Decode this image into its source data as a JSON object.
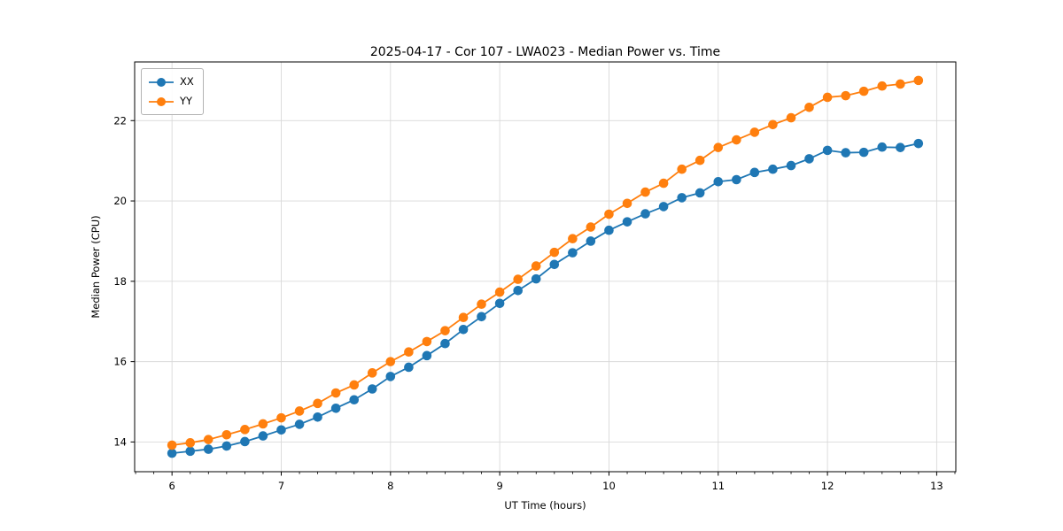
{
  "figure": {
    "background": "#ffffff"
  },
  "chart_data": {
    "type": "line",
    "title": "2025-04-17 - Cor 107 - LWA023 - Median Power vs. Time",
    "xlabel": "UT Time (hours)",
    "ylabel": "Median Power (CPU)",
    "xlim": [
      5.658,
      13.175
    ],
    "ylim": [
      13.26,
      23.46
    ],
    "xticks": [
      6,
      7,
      8,
      9,
      10,
      11,
      12,
      13
    ],
    "yticks": [
      14,
      16,
      18,
      20,
      22
    ],
    "x_minor_step": 0.16667,
    "grid": true,
    "grid_color": "#d9d9d9",
    "legend_position": "upper-left",
    "x": [
      6.0,
      6.167,
      6.333,
      6.5,
      6.667,
      6.833,
      7.0,
      7.167,
      7.333,
      7.5,
      7.667,
      7.833,
      8.0,
      8.167,
      8.333,
      8.5,
      8.667,
      8.833,
      9.0,
      9.167,
      9.333,
      9.5,
      9.667,
      9.833,
      10.0,
      10.167,
      10.333,
      10.5,
      10.667,
      10.833,
      11.0,
      11.167,
      11.333,
      11.5,
      11.667,
      11.833,
      12.0,
      12.167,
      12.333,
      12.5,
      12.667,
      12.833
    ],
    "series": [
      {
        "name": "XX",
        "color": "#1f77b4",
        "values": [
          13.72,
          13.77,
          13.82,
          13.9,
          14.01,
          14.15,
          14.3,
          14.44,
          14.62,
          14.84,
          15.05,
          15.32,
          15.63,
          15.86,
          16.15,
          16.45,
          16.8,
          17.12,
          17.45,
          17.77,
          18.06,
          18.42,
          18.71,
          19.0,
          19.27,
          19.48,
          19.68,
          19.86,
          20.08,
          20.2,
          20.48,
          20.53,
          20.71,
          20.79,
          20.88,
          21.05,
          21.26,
          21.2,
          21.21,
          21.34,
          21.33,
          21.43
        ]
      },
      {
        "name": "YY",
        "color": "#ff7f0e",
        "values": [
          13.92,
          13.98,
          14.06,
          14.18,
          14.31,
          14.45,
          14.6,
          14.77,
          14.96,
          15.22,
          15.42,
          15.72,
          16.0,
          16.24,
          16.5,
          16.77,
          17.1,
          17.43,
          17.73,
          18.05,
          18.38,
          18.72,
          19.06,
          19.35,
          19.67,
          19.94,
          20.22,
          20.44,
          20.79,
          21.01,
          21.33,
          21.52,
          21.71,
          21.9,
          22.07,
          22.33,
          22.58,
          22.62,
          22.73,
          22.86,
          22.91,
          23.0
        ]
      }
    ]
  }
}
